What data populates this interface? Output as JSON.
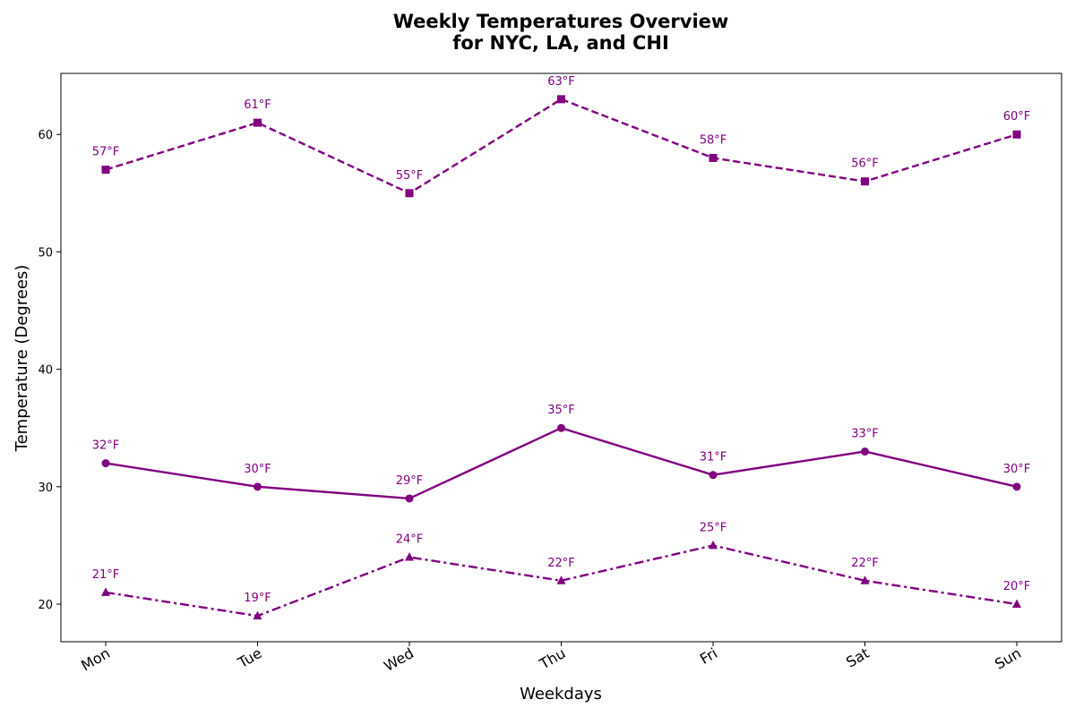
{
  "chart_data": {
    "type": "line",
    "title_lines": [
      "Weekly Temperatures Overview",
      "for NYC, LA, and CHI"
    ],
    "xlabel": "Weekdays",
    "ylabel": "Temperature (Degrees)",
    "categories": [
      "Mon",
      "Tue",
      "Wed",
      "Thu",
      "Fri",
      "Sat",
      "Sun"
    ],
    "ylim": [
      16.8,
      65.2
    ],
    "yticks": [
      20,
      30,
      40,
      50,
      60
    ],
    "grid": false,
    "legend": "none",
    "color": "#800080",
    "label_suffix": "°F",
    "series": [
      {
        "values": [
          57,
          61,
          55,
          63,
          58,
          56,
          60
        ],
        "line_style": "dashed",
        "marker": "square"
      },
      {
        "values": [
          32,
          30,
          29,
          35,
          31,
          33,
          30
        ],
        "line_style": "solid",
        "marker": "circle"
      },
      {
        "values": [
          21,
          19,
          24,
          22,
          25,
          22,
          20
        ],
        "line_style": "dashdot",
        "marker": "triangle"
      }
    ]
  }
}
